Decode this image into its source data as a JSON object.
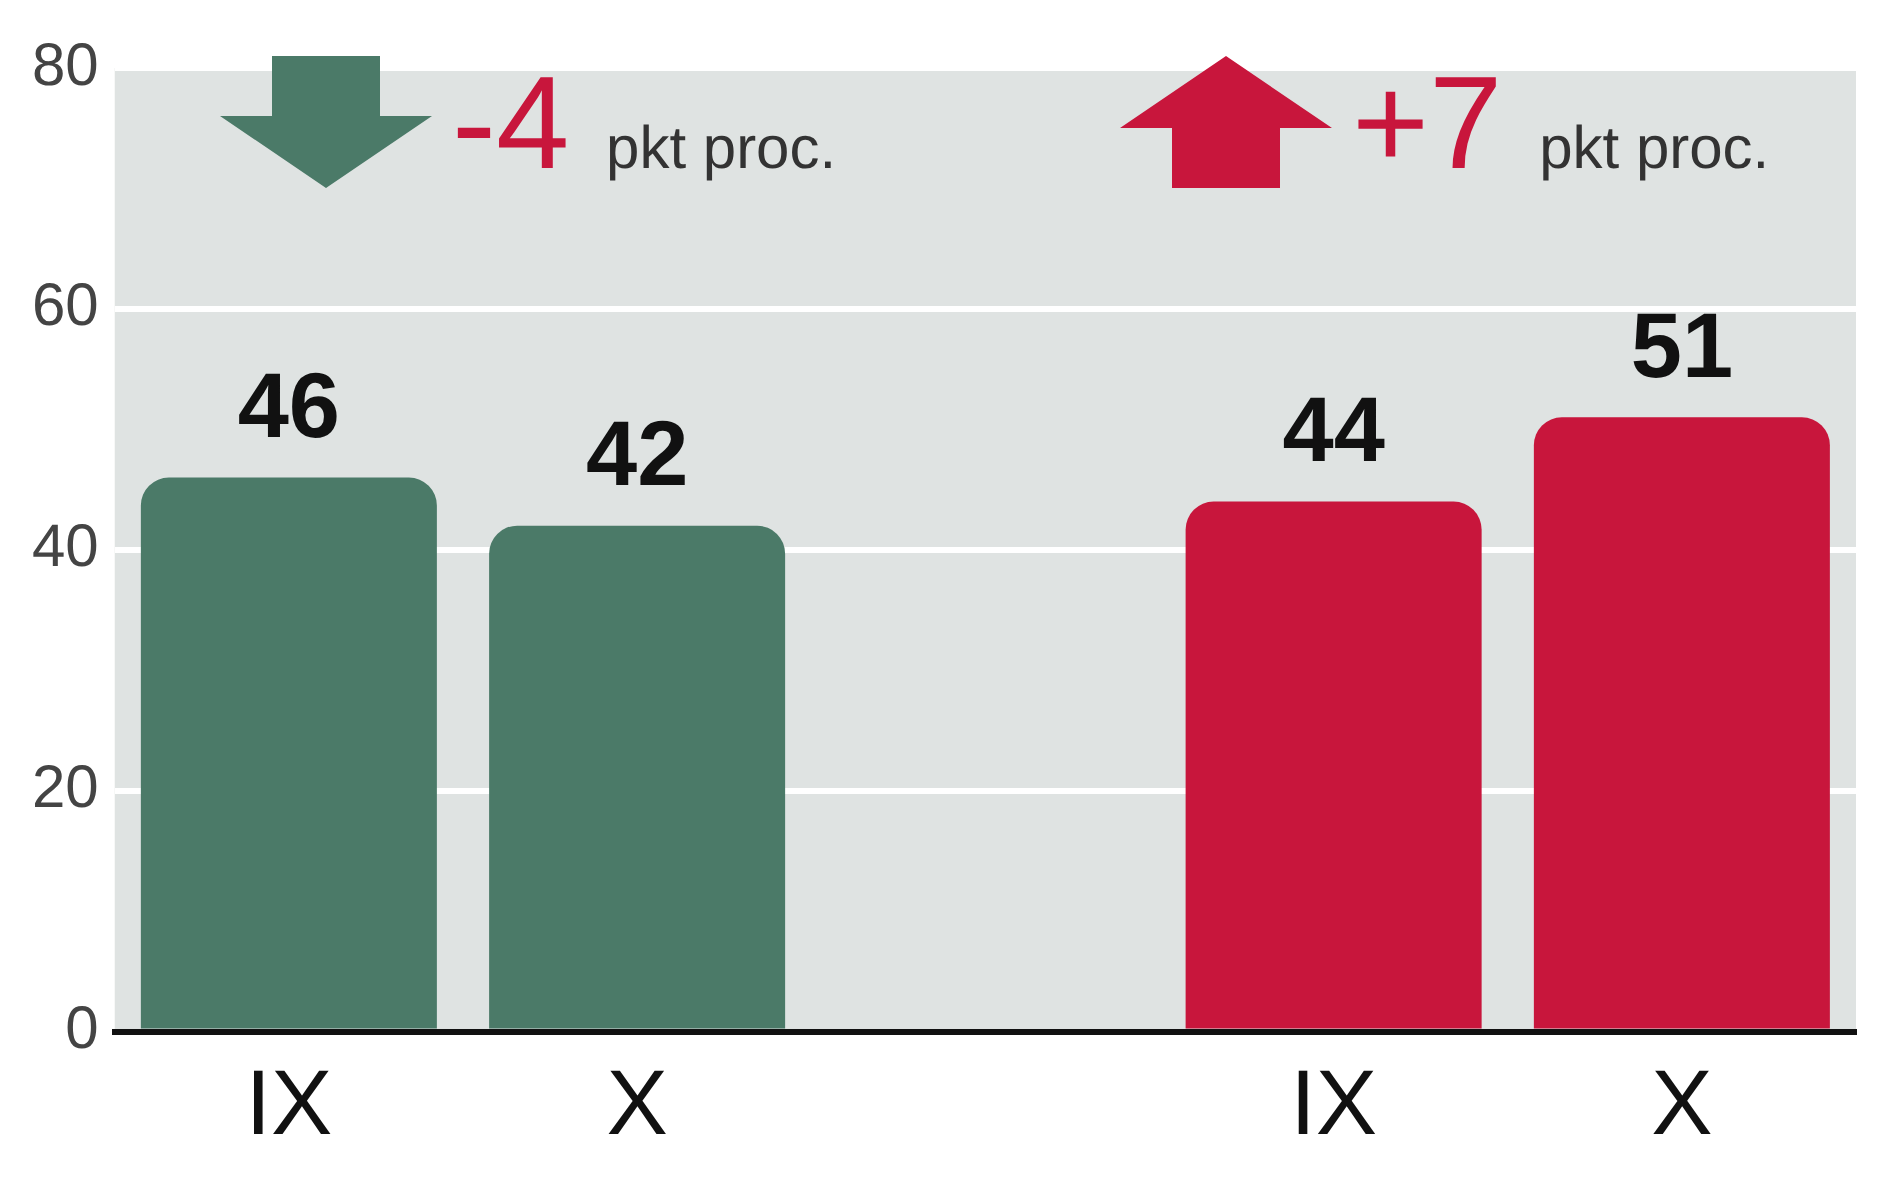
{
  "chart_data": {
    "type": "bar",
    "categories": [
      "IX",
      "X",
      null,
      "IX",
      "X"
    ],
    "values": [
      46,
      42,
      null,
      44,
      51
    ],
    "colors": [
      "#4b7a68",
      "#4b7a68",
      null,
      "#c8163c",
      "#c8163c"
    ],
    "ylim": [
      0,
      80
    ],
    "yticks": [
      0,
      20,
      40,
      60,
      80
    ],
    "grid": "y",
    "data_labels": true,
    "annotations": [
      "-4 pkt proc.",
      "+7 pkt proc."
    ]
  }
}
